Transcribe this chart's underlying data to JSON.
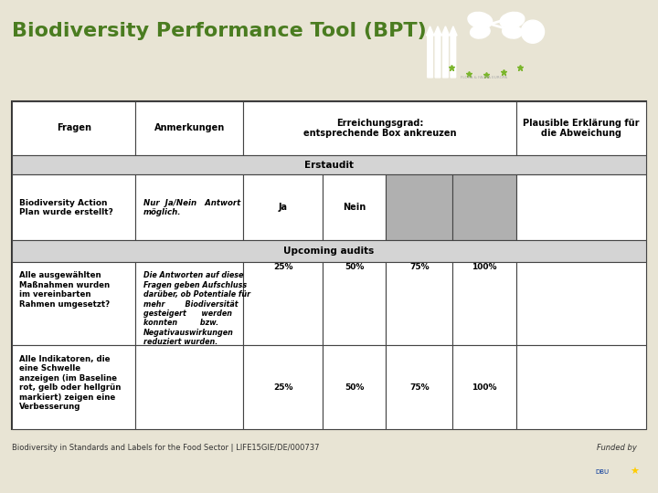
{
  "title": "Biodiversity Performance Tool (BPT)",
  "title_color": "#4a7c20",
  "bg_color": "#e8e4d4",
  "green_bar_color": "#7ab52b",
  "dark_bar_color": "#3d3d1e",
  "table_bg": "#ffffff",
  "section_header_bg": "#d4d4d4",
  "gray_cell_bg": "#b0b0b0",
  "erstaudit_label": "Erstaudit",
  "upcoming_label": "Upcoming audits",
  "row1_fragen": "Biodiversity Action\nPlan wurde erstellt?",
  "row1_anmerkungen": "Nur  Ja/Nein   Antwort\nmöglich.",
  "row1_scores": [
    "Ja",
    "Nein",
    "",
    ""
  ],
  "row1_gray": [
    false,
    false,
    true,
    true
  ],
  "row2_fragen": "Alle ausgewählten\nMaßnahmen wurden\nim vereinbarten\nRahmen umgesetzt?",
  "row2_anmerkungen": "Die Antworten auf diese\nFragen geben Aufschluss\ndarüber, ob Potentiale für\nmehr        Biodiversität\ngesteigert      werden\nkonnten         bzw.\nNegativauswirkungen\nreduziert wurden.",
  "row2_scores": [
    "25%",
    "50%",
    "75%",
    "100%"
  ],
  "row3_fragen": "Alle Indikatoren, die\neine Schwelle\nanzeigen (im Baseline\nrot, gelb oder hellgrün\nmarkiert) zeigen eine\nVerbesserung",
  "row3_scores": [
    "25%",
    "50%",
    "75%",
    "100%"
  ],
  "footer_text": "Biodiversity in Standards and Labels for the Food Sector | LIFE15GIE/DE/000737",
  "funded_text": "Funded by",
  "logo_bg": "#3a3a28",
  "logo_text": "FLORA & FAUNA EUROPA"
}
